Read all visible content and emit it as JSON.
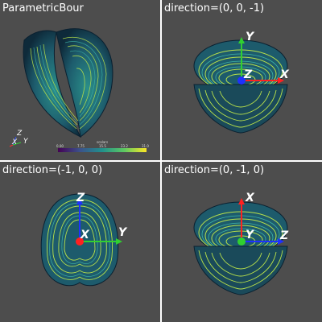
{
  "panels": [
    {
      "title": "ParametricBour"
    },
    {
      "title": "direction=(0, 0, -1)"
    },
    {
      "title": "direction=(-1, 0, 0)"
    },
    {
      "title": "direction=(0, -1, 0)"
    }
  ],
  "axes": {
    "top_right": {
      "up": "Y",
      "right": "X",
      "center": "Z"
    },
    "bottom_left": {
      "up": "Z",
      "right": "Y",
      "center": "X"
    },
    "bottom_right": {
      "up": "X",
      "right": "Z",
      "center": "Y"
    },
    "small_triad": {
      "z": "Z",
      "x": "X",
      "y": "Y"
    }
  },
  "colorbar": {
    "title": "scalars",
    "ticks": [
      "0.00",
      "7.75",
      "15.5",
      "23.2",
      "31.0"
    ],
    "colormap": "viridis"
  },
  "colors": {
    "background": "#4d4d4d",
    "divider": "#ffffff",
    "axis_x": "#ff2020",
    "axis_y": "#20d020",
    "axis_z": "#2030ff"
  }
}
